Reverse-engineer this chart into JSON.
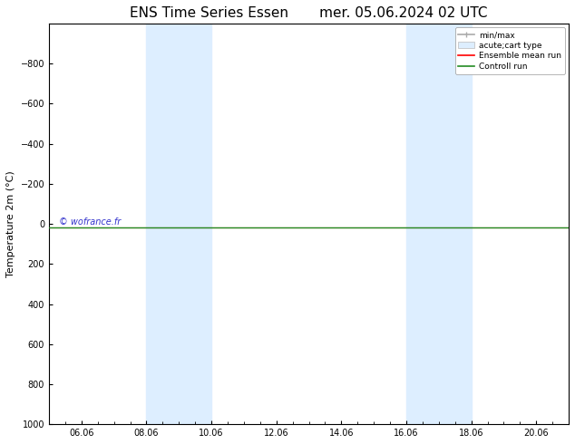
{
  "title": "ENS Time Series Essen       mer. 05.06.2024 02 UTC",
  "ylabel": "Temperature 2m (°C)",
  "xtick_labels": [
    "06.06",
    "08.06",
    "10.06",
    "12.06",
    "14.06",
    "16.06",
    "18.06",
    "20.06"
  ],
  "xtick_values": [
    1,
    3,
    5,
    7,
    9,
    11,
    13,
    15
  ],
  "xlim": [
    0,
    16
  ],
  "ylim_top": -1000,
  "ylim_bottom": 1000,
  "ytick_values": [
    -800,
    -600,
    -400,
    -200,
    0,
    200,
    400,
    600,
    800,
    1000
  ],
  "shaded_bands": [
    {
      "x_start": 3,
      "x_end": 5
    },
    {
      "x_start": 11,
      "x_end": 13
    }
  ],
  "shaded_color": "#ddeeff",
  "horizontal_line_y": 20,
  "ensemble_mean_color": "#ff0000",
  "control_run_color": "#228B22",
  "minmax_color": "#aaaaaa",
  "background_color": "#ffffff",
  "watermark_text": "© wofrance.fr",
  "watermark_color": "#3333cc",
  "title_fontsize": 11,
  "axis_fontsize": 8,
  "tick_fontsize": 7,
  "legend_fontsize": 6.5
}
